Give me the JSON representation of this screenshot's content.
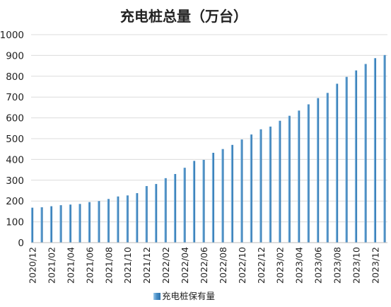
{
  "chart_data": {
    "type": "bar",
    "title": "充电桩总量（万台）",
    "xlabel": "",
    "ylabel": "",
    "ylim": [
      0,
      1000
    ],
    "yticks": [
      0,
      100,
      200,
      300,
      400,
      500,
      600,
      700,
      800,
      900,
      1000
    ],
    "categories": [
      "2020/12",
      "2021/01",
      "2021/02",
      "2021/03",
      "2021/04",
      "2021/05",
      "2021/06",
      "2021/07",
      "2021/08",
      "2021/09",
      "2021/10",
      "2021/11",
      "2021/12",
      "2022/01",
      "2022/02",
      "2022/03",
      "2022/04",
      "2022/05",
      "2022/06",
      "2022/07",
      "2022/08",
      "2022/09",
      "2022/10",
      "2022/11",
      "2022/12",
      "2023/01",
      "2023/02",
      "2023/03",
      "2023/04",
      "2023/05",
      "2023/06",
      "2023/07",
      "2023/08",
      "2023/09",
      "2023/10",
      "2023/11",
      "2023/12",
      "2024/01"
    ],
    "xtick_labels": [
      "2020/12",
      "",
      "2021/02",
      "",
      "2021/04",
      "",
      "2021/06",
      "",
      "2021/08",
      "",
      "2021/10",
      "",
      "2021/12",
      "",
      "2022/02",
      "",
      "2022/04",
      "",
      "2022/06",
      "",
      "2022/08",
      "",
      "2022/10",
      "",
      "2022/12",
      "",
      "2023/02",
      "",
      "2023/04",
      "",
      "2023/06",
      "",
      "2023/08",
      "",
      "2023/10",
      "",
      "2023/12",
      ""
    ],
    "series": [
      {
        "name": "充电桩保有量",
        "color": "#4a90c8",
        "values": [
          168,
          170,
          175,
          180,
          183,
          186,
          195,
          200,
          210,
          222,
          227,
          238,
          272,
          282,
          310,
          330,
          360,
          393,
          398,
          432,
          450,
          470,
          496,
          520,
          545,
          558,
          586,
          610,
          635,
          665,
          695,
          720,
          764,
          797,
          828,
          859,
          887,
          902
        ]
      }
    ],
    "grid": true,
    "legend": "bottom-center"
  }
}
